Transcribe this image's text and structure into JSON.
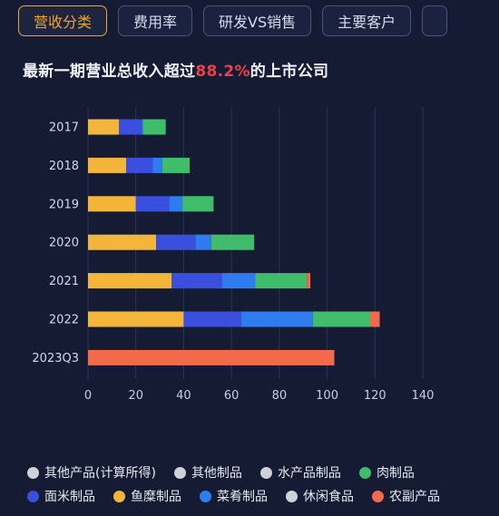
{
  "tabs": [
    {
      "label": "营收分类",
      "active": true
    },
    {
      "label": "费用率",
      "active": false
    },
    {
      "label": "研发VS销售",
      "active": false
    },
    {
      "label": "主要客户",
      "active": false
    },
    {
      "label": "",
      "active": false
    }
  ],
  "heading": {
    "prefix": "最新一期营业总收入超过",
    "highlight": "88.2%",
    "suffix": "的上市公司"
  },
  "colors": {
    "background": "#141b33",
    "highlight": "#ee3f44",
    "active_tab": "#f3a528"
  },
  "chart_data": {
    "type": "bar",
    "orientation": "horizontal",
    "stacked": true,
    "categories": [
      "2017",
      "2018",
      "2019",
      "2020",
      "2021",
      "2022",
      "2023Q3"
    ],
    "xlim": [
      0,
      140
    ],
    "xticks": [
      0,
      20,
      40,
      60,
      80,
      100,
      120,
      140
    ],
    "grid": true,
    "series": [
      {
        "name": "鱼糜制品",
        "color": "#f4b63a",
        "values": [
          13,
          16,
          20,
          28.5,
          35,
          40,
          0
        ]
      },
      {
        "name": "面米制品",
        "color": "#3a4fe0",
        "values": [
          9.5,
          11,
          14,
          16.5,
          21,
          24,
          0
        ]
      },
      {
        "name": "菜肴制品",
        "color": "#2f7cf0",
        "values": [
          0.5,
          4,
          5.5,
          6.5,
          14,
          30,
          0
        ]
      },
      {
        "name": "肉制品",
        "color": "#3fbd6a",
        "values": [
          9.5,
          11.5,
          13,
          18,
          21.5,
          24,
          0
        ]
      },
      {
        "name": "农副产品",
        "color": "#f26a4b",
        "values": [
          0,
          0,
          0,
          0,
          1.5,
          4,
          103
        ]
      },
      {
        "name": "其他产品(计算所得)",
        "color": "#cfd1d8",
        "values": [
          0,
          0,
          0,
          0,
          0,
          0,
          0
        ]
      },
      {
        "name": "其他制品",
        "color": "#cfd1d8",
        "values": [
          0,
          0,
          0,
          0,
          0,
          0,
          0
        ]
      },
      {
        "name": "水产品制品",
        "color": "#cfd1d8",
        "values": [
          0,
          0,
          0,
          0,
          0,
          0,
          0
        ]
      },
      {
        "name": "休闲食品",
        "color": "#cfd1d8",
        "values": [
          0,
          0,
          0,
          0,
          0,
          0,
          0
        ]
      }
    ],
    "legend": {
      "placement": "bottom",
      "rows": [
        [
          {
            "name": "其他产品(计算所得)",
            "color": "#cfd1d8"
          },
          {
            "name": "其他制品",
            "color": "#cfd1d8"
          },
          {
            "name": "水产品制品",
            "color": "#cfd1d8"
          },
          {
            "name": "肉制品",
            "color": "#3fbd6a"
          }
        ],
        [
          {
            "name": "面米制品",
            "color": "#3a4fe0"
          },
          {
            "name": "鱼糜制品",
            "color": "#f4b63a"
          },
          {
            "name": "菜肴制品",
            "color": "#2f7cf0"
          },
          {
            "name": "休闲食品",
            "color": "#cfd1d8"
          },
          {
            "name": "农副产品",
            "color": "#f26a4b"
          }
        ]
      ]
    }
  }
}
